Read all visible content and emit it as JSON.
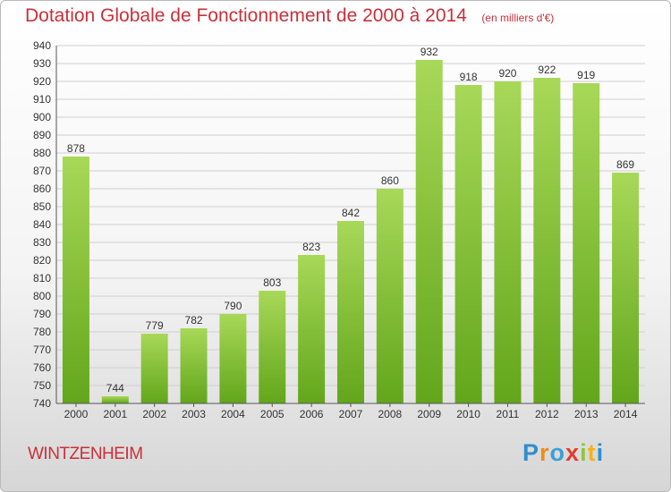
{
  "title": "Dotation Globale de Fonctionnement de 2000 à 2014",
  "unit": "(en milliers d'€)",
  "commune": "WINTZENHEIM",
  "logo_text": "Proxiti",
  "colors": {
    "title": "#c9303a",
    "bar_light": "#a8d858",
    "bar_dark": "#62a61b",
    "grid": "#cfcfcf",
    "axis": "#555555"
  },
  "chart_data": {
    "type": "bar",
    "title": "Dotation Globale de Fonctionnement de 2000 à 2014",
    "xlabel": "",
    "ylabel": "",
    "grid": true,
    "categories": [
      "2000",
      "2001",
      "2002",
      "2003",
      "2004",
      "2005",
      "2006",
      "2007",
      "2008",
      "2009",
      "2010",
      "2011",
      "2012",
      "2013",
      "2014"
    ],
    "values": [
      878,
      744,
      779,
      782,
      790,
      803,
      823,
      842,
      860,
      932,
      918,
      920,
      922,
      919,
      869
    ],
    "ylim": [
      740,
      940
    ],
    "yticks": [
      740,
      750,
      760,
      770,
      780,
      790,
      800,
      810,
      820,
      830,
      840,
      850,
      860,
      870,
      880,
      890,
      900,
      910,
      920,
      930,
      940
    ]
  }
}
